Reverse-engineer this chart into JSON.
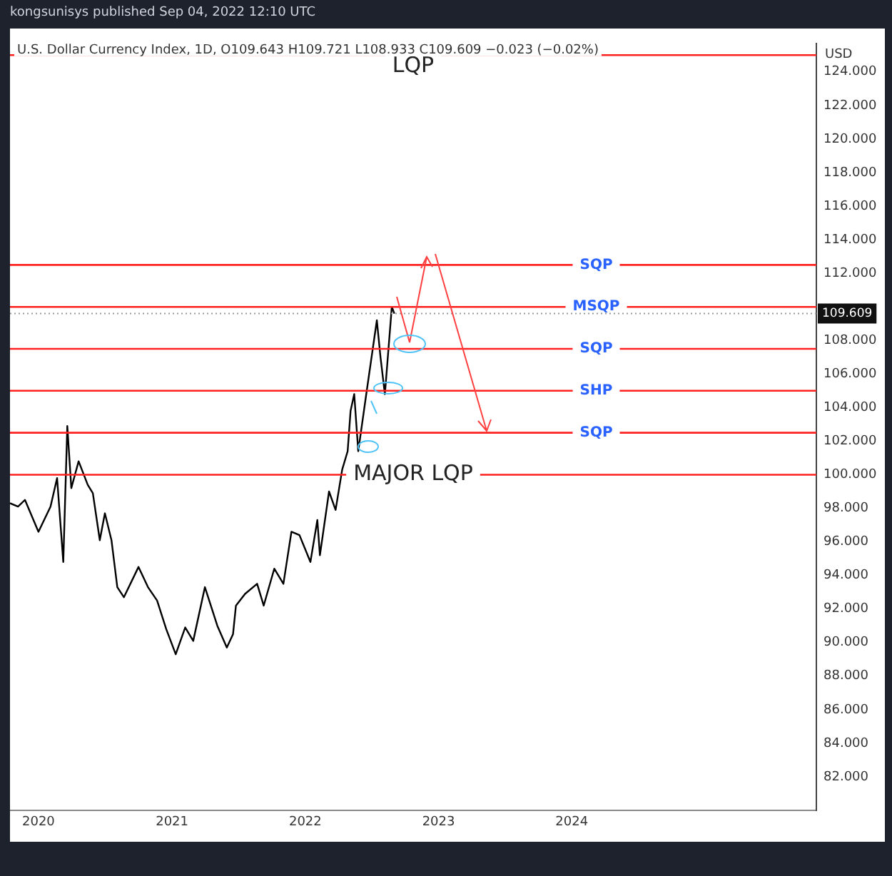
{
  "chart_data": {
    "type": "line",
    "title": "U.S. Dollar Currency Index, 1D, O109.643 H109.721 L108.933 C109.609 −0.023 (−0.02%)",
    "subtitle": "kongsunisys published Sep 04, 2022 12:10 UTC",
    "ylabel": "USD",
    "marker": "none",
    "x": [
      "2019-10-15",
      "2019-11-06",
      "2019-11-25",
      "2020-01-01",
      "2020-02-03",
      "2020-02-21",
      "2020-03-09",
      "2020-03-20",
      "2020-03-31",
      "2020-04-20",
      "2020-05-15",
      "2020-05-29",
      "2020-06-17",
      "2020-07-01",
      "2020-07-19",
      "2020-08-04",
      "2020-08-22",
      "2020-10-01",
      "2020-10-27",
      "2020-11-21",
      "2020-12-16",
      "2021-01-11",
      "2021-02-06",
      "2021-02-28",
      "2021-04-01",
      "2021-05-05",
      "2021-05-31",
      "2021-06-17",
      "2021-06-25",
      "2021-07-20",
      "2021-08-22",
      "2021-09-09",
      "2021-10-08",
      "2021-11-02",
      "2021-11-24",
      "2021-12-16",
      "2022-01-15",
      "2022-02-03",
      "2022-02-10",
      "2022-03-07",
      "2022-03-25",
      "2022-04-12",
      "2022-04-27",
      "2022-05-05",
      "2022-05-15",
      "2022-05-26",
      "2022-06-17",
      "2022-07-16",
      "2022-07-26",
      "2022-08-07",
      "2022-08-26",
      "2022-09-02"
    ],
    "series": [
      {
        "color": "#000000",
        "values": [
          98.3,
          98.1,
          98.5,
          96.6,
          98.1,
          99.8,
          94.8,
          102.9,
          99.2,
          100.8,
          99.4,
          98.9,
          96.1,
          97.7,
          96.1,
          93.3,
          92.7,
          94.5,
          93.3,
          92.5,
          90.8,
          89.3,
          90.9,
          90.1,
          93.3,
          91.0,
          89.7,
          90.5,
          92.2,
          92.9,
          93.5,
          92.2,
          94.4,
          93.5,
          96.6,
          96.4,
          94.8,
          97.3,
          95.2,
          99.0,
          97.9,
          100.3,
          101.4,
          103.8,
          104.8,
          101.4,
          104.8,
          109.2,
          107.0,
          104.8,
          110.0,
          109.6
        ]
      }
    ],
    "xlim": [
      "2019-10-15",
      "2025-11-01"
    ],
    "xticks": [
      "2020",
      "2021",
      "2022",
      "2023",
      "2024"
    ],
    "ylim": [
      80,
      125.7
    ],
    "yticks": [
      {
        "value": 82,
        "label": "82.000"
      },
      {
        "value": 84,
        "label": "84.000"
      },
      {
        "value": 86,
        "label": "86.000"
      },
      {
        "value": 88,
        "label": "88.000"
      },
      {
        "value": 90,
        "label": "90.000"
      },
      {
        "value": 92,
        "label": "92.000"
      },
      {
        "value": 94,
        "label": "94.000"
      },
      {
        "value": 96,
        "label": "96.000"
      },
      {
        "value": 98,
        "label": "98.000"
      },
      {
        "value": 100,
        "label": "100.000"
      },
      {
        "value": 102,
        "label": "102.000"
      },
      {
        "value": 104,
        "label": "104.000"
      },
      {
        "value": 106,
        "label": "106.000"
      },
      {
        "value": 108,
        "label": "108.000"
      },
      {
        "value": 112,
        "label": "112.000"
      },
      {
        "value": 114,
        "label": "114.000"
      },
      {
        "value": 116,
        "label": "116.000"
      },
      {
        "value": 118,
        "label": "118.000"
      },
      {
        "value": 120,
        "label": "120.000"
      },
      {
        "value": 122,
        "label": "122.000"
      },
      {
        "value": 124,
        "label": "124.000"
      }
    ],
    "ref_lines": [
      {
        "axis": "y",
        "value": 112.5,
        "label": "SQP",
        "color": "#ff2020"
      },
      {
        "axis": "y",
        "value": 110,
        "label": "MSQP",
        "color": "#ff2020"
      },
      {
        "axis": "y",
        "value": 107.5,
        "label": "SQP",
        "color": "#ff2020"
      },
      {
        "axis": "y",
        "value": 105,
        "label": "SHP",
        "color": "#ff2020"
      },
      {
        "axis": "y",
        "value": 102.5,
        "label": "SQP",
        "color": "#ff2020"
      },
      {
        "axis": "y",
        "value": 100,
        "label": "MAJOR LQP",
        "color": "#ff2020"
      },
      {
        "axis": "y",
        "value": 125,
        "label": "LQP",
        "color": "#ff2020"
      },
      {
        "axis": "y",
        "value": 109.609,
        "label": "109.609",
        "color": "#999999",
        "line_style": "dotted"
      }
    ]
  }
}
